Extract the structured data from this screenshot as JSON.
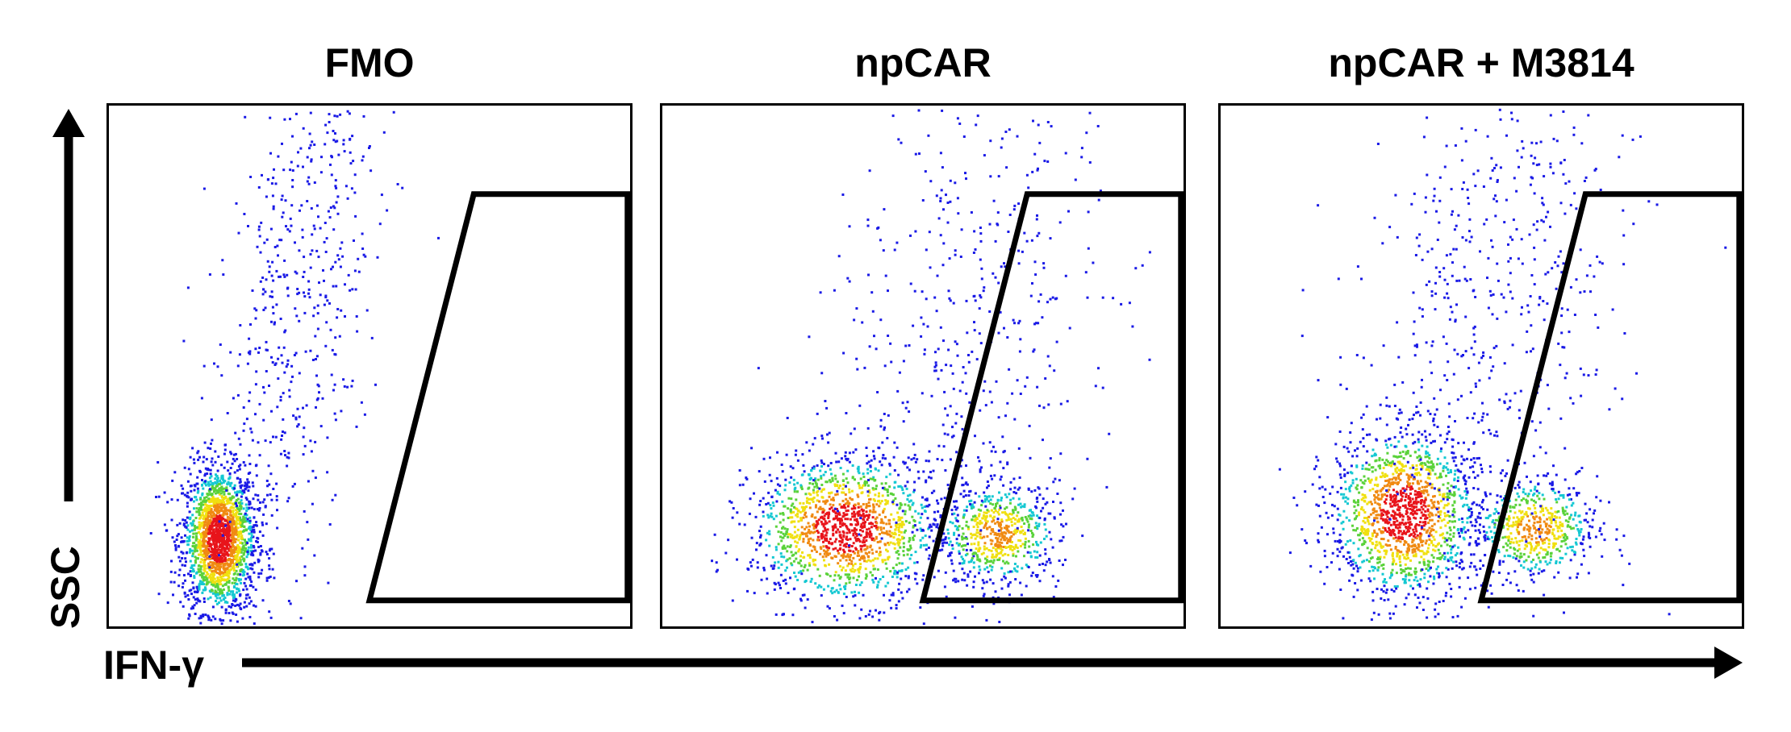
{
  "chart_data": [
    {
      "type": "scatter",
      "panel": "FMO",
      "title": "FMO",
      "xlabel": "IFN-γ",
      "ylabel": "SSC",
      "density_coloring": "blue-cyan-green-yellow-red",
      "populations": [
        {
          "cx": 0.21,
          "cy": 0.17,
          "sx": 0.035,
          "sy": 0.07,
          "weight": 0.75
        },
        {
          "cx": 0.36,
          "cy": 0.62,
          "sx": 0.07,
          "sy": 0.35,
          "weight": 0.25,
          "trail": true
        }
      ],
      "gate": {
        "shape": "trapezoid",
        "x_left_bottom": 0.5,
        "x_left_top": 0.7,
        "x_right": 0.995,
        "y_bottom": 0.05,
        "y_top": 0.83
      }
    },
    {
      "type": "scatter",
      "panel": "npCAR",
      "title": "npCAR",
      "xlabel": "IFN-γ",
      "ylabel": "SSC",
      "density_coloring": "blue-cyan-green-yellow-red",
      "populations": [
        {
          "cx": 0.35,
          "cy": 0.19,
          "sx": 0.09,
          "sy": 0.07,
          "weight": 0.55
        },
        {
          "cx": 0.64,
          "cy": 0.18,
          "sx": 0.06,
          "sy": 0.05,
          "weight": 0.25
        },
        {
          "cx": 0.58,
          "cy": 0.6,
          "sx": 0.13,
          "sy": 0.3,
          "weight": 0.2,
          "trail": true
        }
      ],
      "gate": {
        "shape": "trapezoid",
        "x_left_bottom": 0.5,
        "x_left_top": 0.7,
        "x_right": 0.995,
        "y_bottom": 0.05,
        "y_top": 0.83
      }
    },
    {
      "type": "scatter",
      "panel": "npCAR + M3814",
      "title": "npCAR + M3814",
      "xlabel": "IFN-γ",
      "ylabel": "SSC",
      "density_coloring": "blue-cyan-green-yellow-red",
      "populations": [
        {
          "cx": 0.35,
          "cy": 0.22,
          "sx": 0.07,
          "sy": 0.08,
          "weight": 0.55
        },
        {
          "cx": 0.6,
          "cy": 0.19,
          "sx": 0.06,
          "sy": 0.05,
          "weight": 0.22
        },
        {
          "cx": 0.52,
          "cy": 0.62,
          "sx": 0.12,
          "sy": 0.3,
          "weight": 0.23,
          "trail": true
        }
      ],
      "gate": {
        "shape": "trapezoid",
        "x_left_bottom": 0.5,
        "x_left_top": 0.7,
        "x_right": 0.995,
        "y_bottom": 0.05,
        "y_top": 0.83
      }
    }
  ],
  "axes": {
    "x_label": "IFN-γ",
    "y_label": "SSC"
  }
}
